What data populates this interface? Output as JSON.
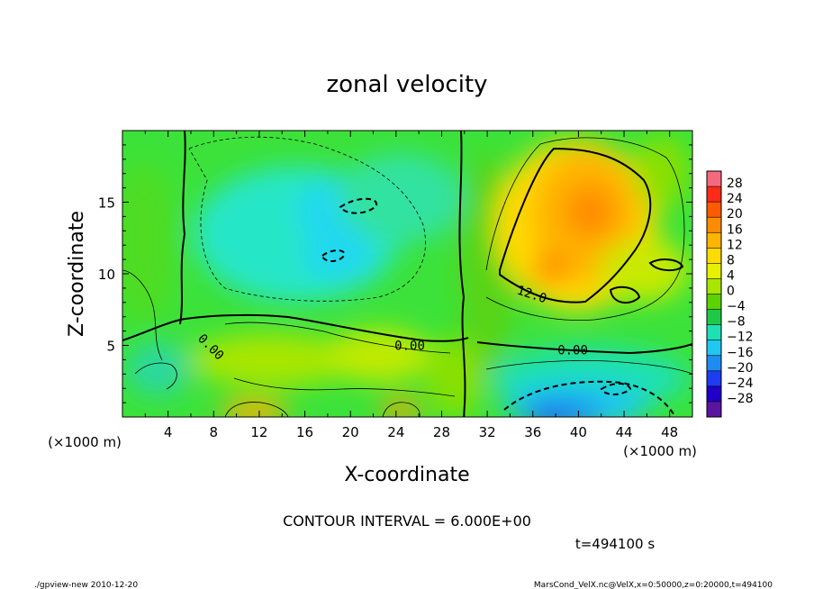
{
  "chart_data": {
    "type": "heatmap",
    "title": "zonal velocity",
    "xlabel": "X-coordinate",
    "ylabel": "Z-coordinate",
    "x_unit": "(×1000 m)",
    "z_unit": "(×1000 m)",
    "xlim": [
      0,
      50
    ],
    "ylim": [
      0,
      20
    ],
    "x_ticks": [
      4,
      8,
      12,
      16,
      20,
      24,
      28,
      32,
      36,
      40,
      44,
      48
    ],
    "y_ticks": [
      5,
      10,
      15
    ],
    "colorbar": {
      "labels": [
        28,
        24,
        20,
        16,
        12,
        8,
        4,
        0,
        -4,
        -8,
        -12,
        -16,
        -20,
        -24,
        -28
      ],
      "colors": [
        "#f46a7c",
        "#ff2a1a",
        "#ff5a00",
        "#ff8c00",
        "#ffb400",
        "#ffdc00",
        "#e6f000",
        "#a8e600",
        "#5cd200",
        "#20c84a",
        "#1ee0b4",
        "#1ec8f0",
        "#1e8cf0",
        "#1e3cf0",
        "#2000c8",
        "#5a14a0"
      ]
    },
    "contour_labels": [
      {
        "text": "0.00",
        "x": 25.2,
        "z": 5.0
      },
      {
        "text": "0.00",
        "x": 39.5,
        "z": 4.7
      },
      {
        "text": "12.0",
        "x": 35.8,
        "z": 8.6
      },
      {
        "text": "0.00",
        "x": 7.5,
        "z": 5.0
      }
    ],
    "contour_interval": "CONTOUR INTERVAL = 6.000E+00",
    "time": "t=494100 s"
  },
  "footer": {
    "left": "./gpview-new  2010-12-20",
    "right": "MarsCond_VelX.nc@VelX,x=0:50000,z=0:20000,t=494100"
  }
}
